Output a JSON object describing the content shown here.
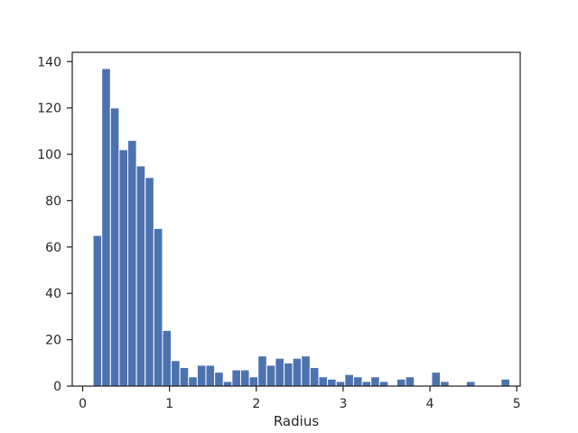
{
  "chart_data": {
    "type": "bar",
    "title": "",
    "xlabel": "Radius",
    "ylabel": "",
    "xlim": [
      -0.12,
      5.04
    ],
    "ylim": [
      0,
      144
    ],
    "xticks": [
      0,
      1,
      2,
      3,
      4,
      5
    ],
    "xtick_labels": [
      "0",
      "1",
      "2",
      "3",
      "4",
      "5"
    ],
    "yticks": [
      0,
      20,
      40,
      60,
      80,
      100,
      120,
      140
    ],
    "ytick_labels": [
      "0",
      "20",
      "40",
      "60",
      "80",
      "100",
      "120",
      "140"
    ],
    "bin_start": 0.12,
    "bin_width": 0.1,
    "values": [
      65,
      137,
      120,
      102,
      106,
      95,
      90,
      68,
      24,
      11,
      8,
      4,
      9,
      9,
      6,
      2,
      7,
      7,
      4,
      13,
      9,
      12,
      10,
      12,
      13,
      8,
      4,
      3,
      2,
      5,
      4,
      2,
      4,
      2,
      0,
      3,
      4,
      0,
      0,
      6,
      2,
      0,
      0,
      2,
      0,
      0,
      0,
      3
    ],
    "color": "#4c72b0",
    "grid": false,
    "legend": false
  }
}
